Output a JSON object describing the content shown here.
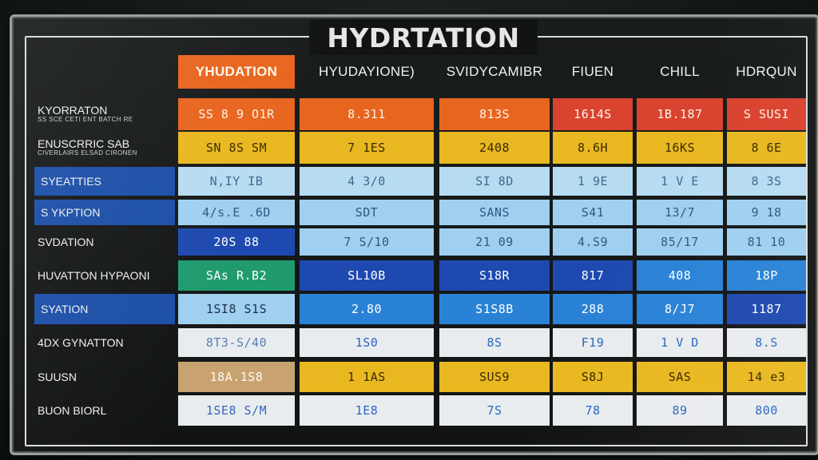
{
  "title": "HYDRTATION",
  "columns": [
    "YHUDATION",
    "HYUDAYIONE)",
    "SVIDYCAMIBR",
    "FIUEN",
    "CHILL",
    "HDRQUN"
  ],
  "rows": [
    {
      "label": "KYORRATON",
      "sub": "SS SCE CETI ENT BATCH RE",
      "cells": [
        "SS 8 9 O1R",
        "8.311",
        "813S",
        "1614S",
        "1B.187",
        "S SUSI"
      ]
    },
    {
      "label": "ENUSCRRIC SAB",
      "sub": "CIVERLAIRS ELSAD CIRONEN",
      "cells": [
        "SN 8S SM",
        "7 1ES",
        "2408",
        "8.6H",
        "16KS",
        "8 6E"
      ]
    },
    {
      "label": "SYEATTIES",
      "cells": [
        "N,IY IB",
        "4 3/0",
        "SI 8D",
        "1 9E",
        "1 V E",
        "8 3S"
      ]
    },
    {
      "label": "S YKPTION",
      "cells": [
        "4/s.E .6D",
        "SDT",
        "SANS",
        "S41",
        "13/7",
        "9 18"
      ]
    },
    {
      "label": "SVDATION",
      "cells": [
        "20S 88",
        "7 S/10",
        "21 09",
        "4.S9",
        "85/17",
        "81 10"
      ]
    },
    {
      "label": "HUVATTON HYPAONI",
      "cells": [
        "SAs R.B2",
        "SL10B",
        "S18R",
        "817",
        "408",
        "18P"
      ]
    },
    {
      "label": "SYATION",
      "cells": [
        "1SI8 S1S",
        "2.80",
        "S1S8B",
        "288",
        "8/J7",
        "1187"
      ]
    },
    {
      "label": "4DX GYNATTON",
      "cells": [
        "8T3-S/40",
        "1S0",
        "8S",
        "F19",
        "1 V D",
        "8.S"
      ]
    },
    {
      "label": "SUUSN",
      "cells": [
        "18A.1S8",
        "1 1AS",
        "SUS9",
        "S8J",
        "SAS",
        "14 e3"
      ]
    },
    {
      "label": "BUON BIORL",
      "cells": [
        "1SE8 S/M",
        "1E8",
        "7S",
        "78",
        "89",
        "800"
      ]
    }
  ],
  "colors": {
    "orange": "#e8651f",
    "orange_light": "#f07a2a",
    "red": "#d9432f",
    "yellow": "#e9b820",
    "sky": "#b7dcf2",
    "sky2": "#9fd0f0",
    "blue": "#1e49b0",
    "blue_mid": "#2a82d6",
    "green": "#1f9b6e",
    "white": "#e9ecef",
    "tan": "#c9a271",
    "dark": "#1a1d1d"
  }
}
